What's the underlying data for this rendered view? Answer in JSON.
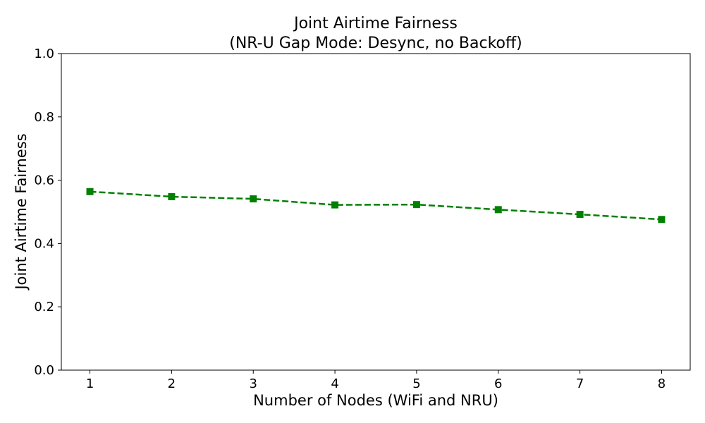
{
  "chart_data": {
    "type": "line",
    "title_line1": "Joint Airtime Fairness",
    "title_line2": "(NR-U Gap Mode: Desync, no Backoff)",
    "xlabel": "Number of Nodes (WiFi and NRU)",
    "ylabel": "Joint Airtime Fairness",
    "x": [
      1,
      2,
      3,
      4,
      5,
      6,
      7,
      8
    ],
    "series": [
      {
        "values": [
          0.564,
          0.548,
          0.541,
          0.522,
          0.523,
          0.507,
          0.492,
          0.476
        ],
        "color": "#008000",
        "line_style": "dashed",
        "marker": "square"
      }
    ],
    "xlim": [
      0.65,
      8.35
    ],
    "ylim": [
      0.0,
      1.0
    ],
    "xticks": [
      "1",
      "2",
      "3",
      "4",
      "5",
      "6",
      "7",
      "8"
    ],
    "yticks": [
      "0.0",
      "0.2",
      "0.4",
      "0.6",
      "0.8",
      "1.0"
    ],
    "grid": false
  }
}
